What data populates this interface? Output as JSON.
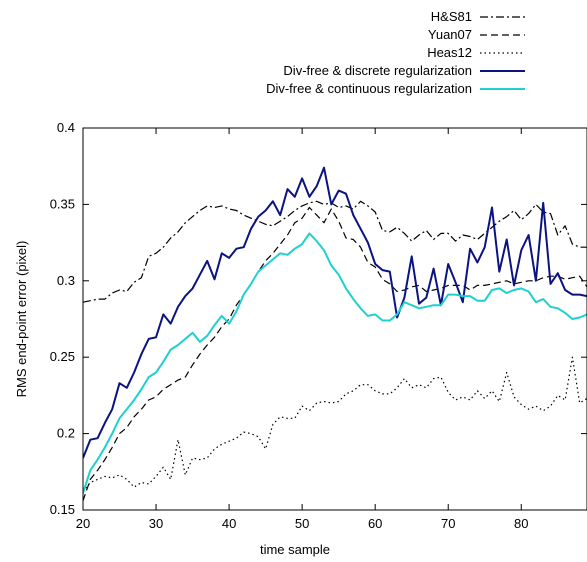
{
  "chart_data": {
    "type": "line",
    "xlabel": "time sample",
    "ylabel": "RMS end-point error (pixel)",
    "xlim": [
      20,
      89
    ],
    "ylim": [
      0.15,
      0.4
    ],
    "x_ticks": [
      20,
      30,
      40,
      50,
      60,
      70,
      80
    ],
    "y_ticks": [
      0.15,
      0.2,
      0.25,
      0.3,
      0.35,
      0.4
    ],
    "x_tick_labels": [
      "20",
      "30",
      "40",
      "50",
      "60",
      "70",
      "80"
    ],
    "y_tick_labels": [
      "0.15",
      "0.2",
      "0.25",
      "0.3",
      "0.35",
      "0.4"
    ],
    "grid": false,
    "legend_position": "top-right, above plot",
    "x": [
      20,
      21,
      22,
      23,
      24,
      25,
      26,
      27,
      28,
      29,
      30,
      31,
      32,
      33,
      34,
      35,
      36,
      37,
      38,
      39,
      40,
      41,
      42,
      43,
      44,
      45,
      46,
      47,
      48,
      49,
      50,
      51,
      52,
      53,
      54,
      55,
      56,
      57,
      58,
      59,
      60,
      61,
      62,
      63,
      64,
      65,
      66,
      67,
      68,
      69,
      70,
      71,
      72,
      73,
      74,
      75,
      76,
      77,
      78,
      79,
      80,
      81,
      82,
      83,
      84,
      85,
      86,
      87,
      88,
      89
    ],
    "series": [
      {
        "name": "H&S81",
        "color": "#000000",
        "dash": "dashdot",
        "values": [
          0.286,
          0.287,
          0.288,
          0.288,
          0.292,
          0.294,
          0.293,
          0.299,
          0.302,
          0.316,
          0.318,
          0.322,
          0.328,
          0.332,
          0.338,
          0.342,
          0.346,
          0.349,
          0.348,
          0.349,
          0.347,
          0.346,
          0.343,
          0.341,
          0.339,
          0.337,
          0.336,
          0.339,
          0.342,
          0.346,
          0.349,
          0.351,
          0.352,
          0.35,
          0.351,
          0.348,
          0.349,
          0.347,
          0.352,
          0.349,
          0.345,
          0.333,
          0.332,
          0.335,
          0.331,
          0.326,
          0.33,
          0.333,
          0.327,
          0.331,
          0.331,
          0.326,
          0.33,
          0.329,
          0.327,
          0.331,
          0.335,
          0.339,
          0.342,
          0.346,
          0.34,
          0.344,
          0.35,
          0.345,
          0.344,
          0.33,
          0.336,
          0.324,
          0.322,
          0.322
        ]
      },
      {
        "name": "Yuan07",
        "color": "#000000",
        "dash": "dashed",
        "values": [
          0.156,
          0.17,
          0.176,
          0.183,
          0.191,
          0.2,
          0.204,
          0.211,
          0.216,
          0.222,
          0.224,
          0.229,
          0.232,
          0.235,
          0.237,
          0.245,
          0.252,
          0.258,
          0.263,
          0.27,
          0.275,
          0.284,
          0.291,
          0.298,
          0.306,
          0.313,
          0.318,
          0.324,
          0.33,
          0.338,
          0.341,
          0.348,
          0.343,
          0.338,
          0.347,
          0.339,
          0.328,
          0.327,
          0.322,
          0.312,
          0.309,
          0.301,
          0.298,
          0.293,
          0.294,
          0.296,
          0.297,
          0.293,
          0.294,
          0.295,
          0.297,
          0.297,
          0.297,
          0.294,
          0.297,
          0.297,
          0.298,
          0.299,
          0.3,
          0.298,
          0.299,
          0.3,
          0.3,
          0.302,
          0.303,
          0.303,
          0.301,
          0.302,
          0.303,
          0.296
        ]
      },
      {
        "name": "Heas12",
        "color": "#000000",
        "dash": "dotted",
        "values": [
          0.162,
          0.168,
          0.17,
          0.172,
          0.171,
          0.173,
          0.17,
          0.165,
          0.168,
          0.167,
          0.172,
          0.178,
          0.17,
          0.196,
          0.173,
          0.184,
          0.183,
          0.184,
          0.19,
          0.193,
          0.195,
          0.197,
          0.201,
          0.2,
          0.198,
          0.19,
          0.206,
          0.211,
          0.21,
          0.21,
          0.218,
          0.215,
          0.22,
          0.221,
          0.22,
          0.221,
          0.226,
          0.228,
          0.232,
          0.232,
          0.228,
          0.226,
          0.226,
          0.23,
          0.236,
          0.23,
          0.232,
          0.23,
          0.236,
          0.237,
          0.227,
          0.222,
          0.224,
          0.222,
          0.228,
          0.223,
          0.228,
          0.221,
          0.24,
          0.224,
          0.219,
          0.216,
          0.218,
          0.215,
          0.218,
          0.225,
          0.222,
          0.25,
          0.22,
          0.223
        ]
      },
      {
        "name": "Div-free & discrete regularization",
        "color": "#0a1380",
        "dash": "solid",
        "values": [
          0.184,
          0.196,
          0.197,
          0.207,
          0.216,
          0.233,
          0.23,
          0.24,
          0.252,
          0.262,
          0.263,
          0.278,
          0.272,
          0.283,
          0.29,
          0.295,
          0.304,
          0.313,
          0.301,
          0.318,
          0.315,
          0.321,
          0.322,
          0.334,
          0.342,
          0.346,
          0.352,
          0.343,
          0.36,
          0.355,
          0.367,
          0.355,
          0.362,
          0.374,
          0.35,
          0.359,
          0.357,
          0.343,
          0.334,
          0.325,
          0.311,
          0.307,
          0.306,
          0.276,
          0.289,
          0.316,
          0.285,
          0.289,
          0.308,
          0.284,
          0.311,
          0.299,
          0.286,
          0.321,
          0.312,
          0.322,
          0.348,
          0.306,
          0.327,
          0.297,
          0.32,
          0.33,
          0.3,
          0.351,
          0.298,
          0.305,
          0.294,
          0.291,
          0.291,
          0.29
        ]
      },
      {
        "name": "Div-free & continuous regularization",
        "color": "#1fd0d0",
        "dash": "solid",
        "values": [
          0.161,
          0.176,
          0.183,
          0.191,
          0.2,
          0.21,
          0.216,
          0.222,
          0.229,
          0.237,
          0.24,
          0.247,
          0.255,
          0.258,
          0.262,
          0.266,
          0.26,
          0.264,
          0.271,
          0.277,
          0.272,
          0.28,
          0.291,
          0.298,
          0.306,
          0.31,
          0.314,
          0.318,
          0.317,
          0.321,
          0.324,
          0.331,
          0.326,
          0.32,
          0.31,
          0.304,
          0.295,
          0.288,
          0.282,
          0.277,
          0.278,
          0.274,
          0.274,
          0.278,
          0.286,
          0.284,
          0.282,
          0.283,
          0.284,
          0.284,
          0.291,
          0.291,
          0.29,
          0.29,
          0.287,
          0.287,
          0.294,
          0.295,
          0.292,
          0.294,
          0.295,
          0.293,
          0.286,
          0.288,
          0.283,
          0.282,
          0.279,
          0.275,
          0.276,
          0.278
        ]
      }
    ]
  }
}
